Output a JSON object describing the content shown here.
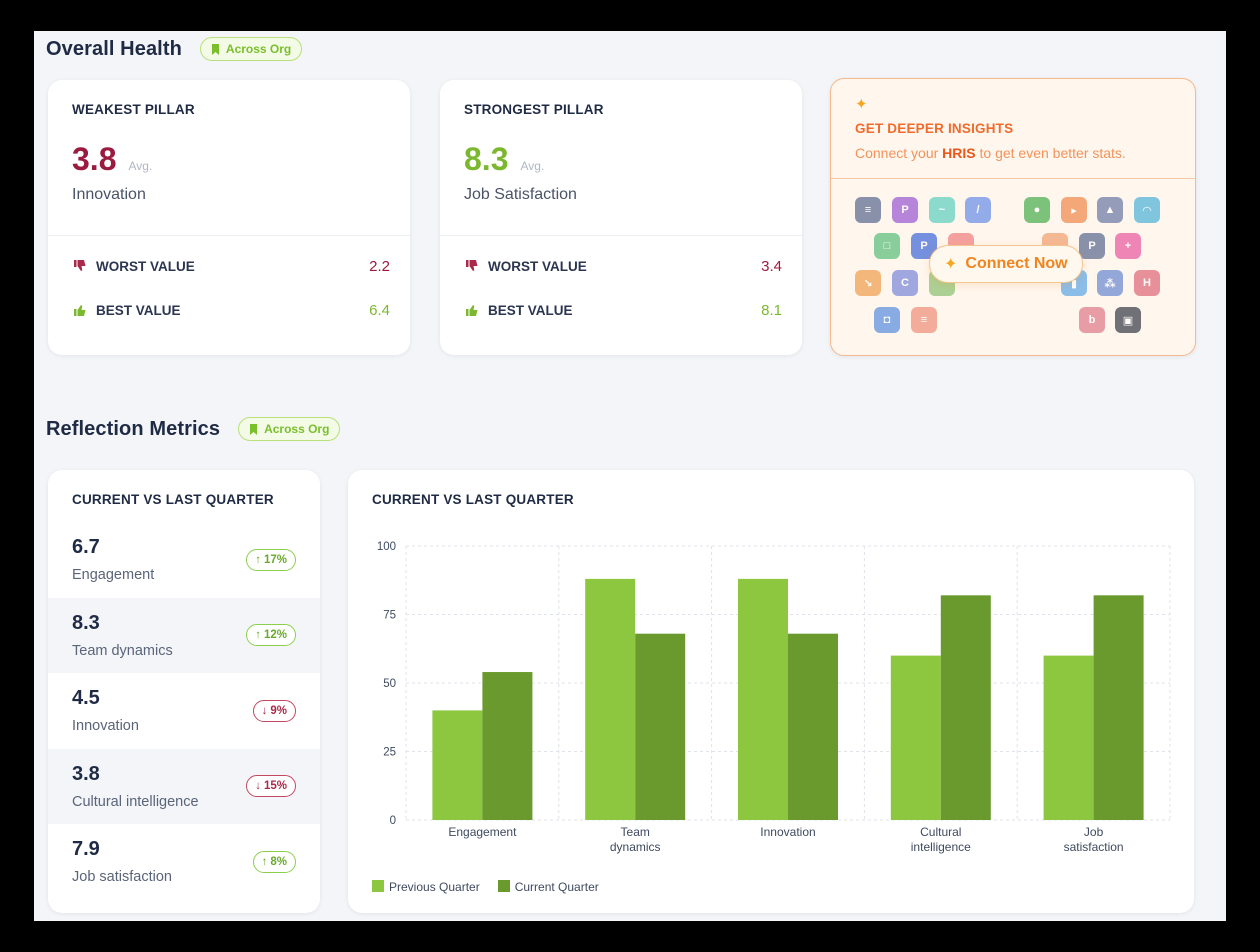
{
  "overall_health": {
    "title": "Overall Health",
    "scope_pill": "Across Org",
    "weakest": {
      "label": "WEAKEST PILLAR",
      "score": "3.8",
      "avg_label": "Avg.",
      "pillar": "Innovation",
      "worst_label": "WORST VALUE",
      "worst_value": "2.2",
      "best_label": "BEST VALUE",
      "best_value": "6.4"
    },
    "strongest": {
      "label": "STRONGEST PILLAR",
      "score": "8.3",
      "avg_label": "Avg.",
      "pillar": "Job Satisfaction",
      "worst_label": "WORST VALUE",
      "worst_value": "3.4",
      "best_label": "BEST VALUE",
      "best_value": "8.1"
    },
    "insights": {
      "title": "GET DEEPER INSIGHTS",
      "subtitle_pre": "Connect your ",
      "subtitle_bold": "HRIS",
      "subtitle_post": " to get even better stats.",
      "button_label": "Connect Now",
      "sparkle_icon": "sparkle-icon",
      "logos": [
        {
          "name": "integration-logo-1",
          "color": "#5b6b8f",
          "glyph": "≡"
        },
        {
          "name": "integration-logo-2",
          "color": "#9b59d0",
          "glyph": "P"
        },
        {
          "name": "integration-logo-3",
          "color": "#5fd0c0",
          "glyph": "~"
        },
        {
          "name": "integration-logo-4",
          "color": "#6b8fe8",
          "glyph": "/"
        },
        {
          "name": "integration-logo-5",
          "color": "#4caf50",
          "glyph": "●"
        },
        {
          "name": "integration-logo-6",
          "color": "#f08a4b",
          "glyph": "▸"
        },
        {
          "name": "integration-logo-7",
          "color": "#6d7aa6",
          "glyph": "▲"
        },
        {
          "name": "integration-logo-8",
          "color": "#4fb3d9",
          "glyph": "◠"
        },
        {
          "name": "integration-logo-9",
          "color": "#5cbf7a",
          "glyph": "□"
        },
        {
          "name": "integration-logo-10",
          "color": "#3f6ad8",
          "glyph": "P"
        },
        {
          "name": "integration-logo-11",
          "color": "#f08080",
          "glyph": ""
        },
        {
          "name": "integration-logo-12",
          "color": "#f0a070",
          "glyph": ""
        },
        {
          "name": "integration-logo-13",
          "color": "#5b6b8f",
          "glyph": "P"
        },
        {
          "name": "integration-logo-14",
          "color": "#e85aa0",
          "glyph": "+"
        },
        {
          "name": "integration-logo-15",
          "color": "#f0a050",
          "glyph": "↘"
        },
        {
          "name": "integration-logo-16",
          "color": "#7b8ad8",
          "glyph": "C"
        },
        {
          "name": "integration-logo-17",
          "color": "#8cc070",
          "glyph": ""
        },
        {
          "name": "integration-logo-18",
          "color": "#5fa8e8",
          "glyph": "▮"
        },
        {
          "name": "integration-logo-19",
          "color": "#6a8ad0",
          "glyph": "⁂"
        },
        {
          "name": "integration-logo-20",
          "color": "#e06a7a",
          "glyph": "H"
        },
        {
          "name": "integration-logo-21",
          "color": "#5b8fe0",
          "glyph": "◘"
        },
        {
          "name": "integration-logo-22",
          "color": "#f0907a",
          "glyph": "≡"
        },
        {
          "name": "integration-logo-23",
          "color": "#e07a8a",
          "glyph": "b"
        },
        {
          "name": "integration-logo-24",
          "color": "#3a3f4a",
          "glyph": "▣"
        }
      ]
    }
  },
  "reflection": {
    "title": "Reflection Metrics",
    "scope_pill": "Across Org",
    "list_title": "CURRENT VS LAST QUARTER",
    "metrics": [
      {
        "value": "6.7",
        "name": "Engagement",
        "change": "17%",
        "direction": "up"
      },
      {
        "value": "8.3",
        "name": "Team dynamics",
        "change": "12%",
        "direction": "up"
      },
      {
        "value": "4.5",
        "name": "Innovation",
        "change": "9%",
        "direction": "down"
      },
      {
        "value": "3.8",
        "name": "Cultural intelligence",
        "change": "15%",
        "direction": "down"
      },
      {
        "value": "7.9",
        "name": "Job satisfaction",
        "change": "8%",
        "direction": "up"
      }
    ]
  },
  "chart_data": {
    "type": "bar",
    "title": "CURRENT VS LAST QUARTER",
    "categories": [
      [
        "Engagement"
      ],
      [
        "Team",
        "dynamics"
      ],
      [
        "Innovation"
      ],
      [
        "Cultural",
        "intelligence"
      ],
      [
        "Job",
        "satisfaction"
      ]
    ],
    "series": [
      {
        "name": "Previous Quarter",
        "color": "#8dc63f",
        "values": [
          40,
          88,
          88,
          60,
          60
        ]
      },
      {
        "name": "Current Quarter",
        "color": "#6a9a2e",
        "values": [
          54,
          68,
          68,
          82,
          82
        ]
      }
    ],
    "yticks": [
      0,
      25,
      50,
      75,
      100
    ],
    "ylim": [
      0,
      100
    ],
    "grid": true,
    "legend_position": "bottom-left"
  },
  "colors": {
    "weak": "#9b1b40",
    "strong": "#7cb82f",
    "worst_icon": "#a8294a",
    "best_icon": "#7cb82f"
  }
}
